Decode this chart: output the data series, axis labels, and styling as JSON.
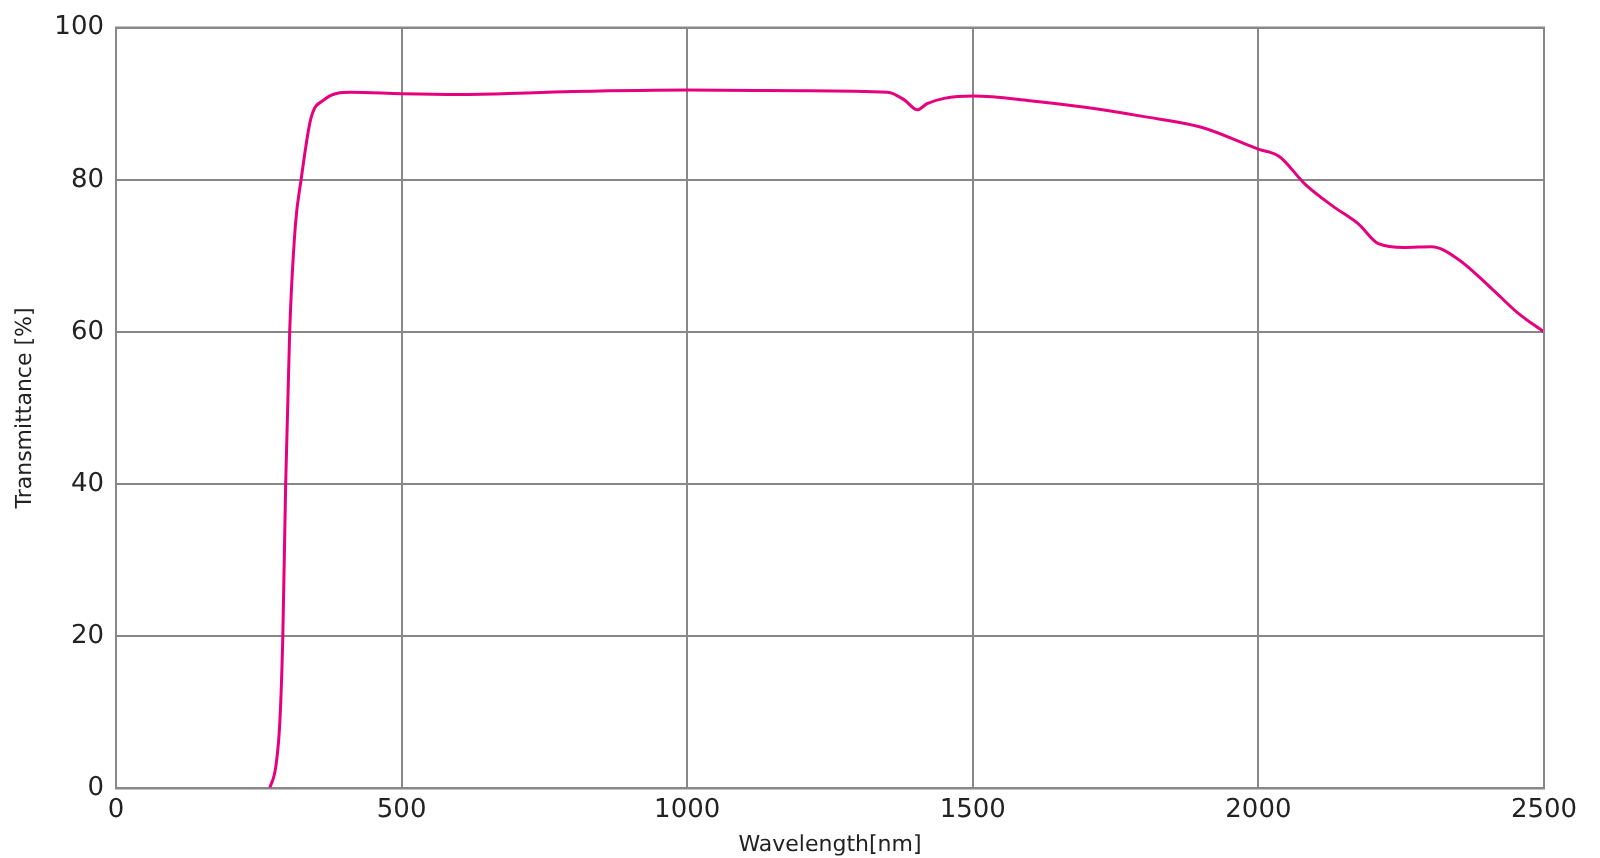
{
  "chart_data": {
    "type": "line",
    "xlabel": "Wavelength[nm]",
    "ylabel": "Transmittance [%]",
    "xlim": [
      0,
      2500
    ],
    "ylim": [
      0,
      100
    ],
    "xticks": [
      0,
      500,
      1000,
      1500,
      2000,
      2500
    ],
    "yticks": [
      0,
      20,
      40,
      60,
      80,
      100
    ],
    "grid": true,
    "legend": false,
    "marker": "none",
    "line_style": "solid",
    "series": [
      {
        "color": "#e6007e",
        "x": [
          269,
          280,
          287,
          292,
          297,
          304,
          314,
          324,
          341,
          364,
          411,
          500,
          600,
          800,
          1000,
          1200,
          1351,
          1380,
          1403,
          1420,
          1450,
          1502,
          1600,
          1700,
          1800,
          1900,
          2001,
          2036,
          2082,
          2129,
          2175,
          2210,
          2256,
          2303,
          2349,
          2407,
          2454,
          2500
        ],
        "values": [
          0,
          3,
          9,
          20,
          40,
          60,
          74,
          80,
          88,
          90.5,
          91.5,
          91.3,
          91.2,
          91.6,
          91.8,
          91.7,
          91.5,
          90.5,
          89.2,
          90,
          90.7,
          91,
          90.4,
          89.5,
          88.3,
          86.9,
          84,
          83.1,
          79.4,
          76.6,
          74.2,
          71.6,
          71.1,
          71.2,
          69.6,
          65.8,
          62.5,
          60
        ]
      }
    ]
  }
}
